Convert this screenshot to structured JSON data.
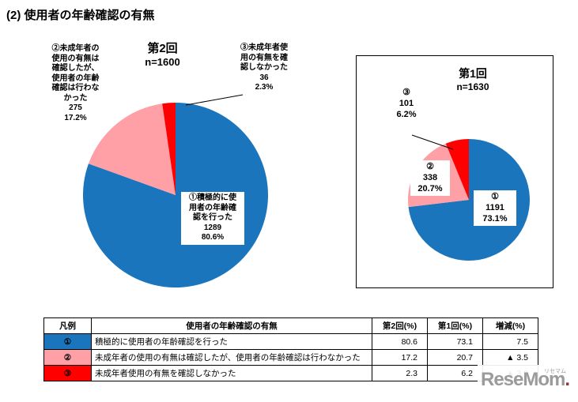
{
  "page_title": "(2) 使用者の年齢確認の有無",
  "colors": {
    "blue": "#1b75bc",
    "pink": "#ff9fa6",
    "red": "#fe0000"
  },
  "chart_data": [
    {
      "type": "pie",
      "round": "第2回",
      "n_label": "n=1600",
      "categories": [
        "①積極的に使用者の年齢確認を行った",
        "②未成年者の使用の有無は確認したが、使用者の年齢確認は行わなかった",
        "③未成年者使用の有無を確認しなかった"
      ],
      "values": [
        1289,
        275,
        36
      ],
      "percents": [
        80.6,
        17.2,
        2.3
      ],
      "slices": [
        {
          "name": "age-confirmed",
          "pct": 80.6,
          "color": "#1b75bc",
          "label": "①積極的に使\n用者の年齢確\n認を行った\n1289\n80.6%"
        },
        {
          "name": "minor-use-checked-only",
          "pct": 17.2,
          "color": "#ff9fa6",
          "label": "②未成年者の\n使用の有無は\n確認したが、\n使用者の年齢\n確認は行わな\nかった\n275\n17.2%"
        },
        {
          "name": "not-checked",
          "pct": 2.3,
          "color": "#fe0000",
          "label": "③未成年者使\n用の有無を確\n認しなかった\n36\n2.3%"
        }
      ]
    },
    {
      "type": "pie",
      "round": "第1回",
      "n_label": "n=1630",
      "categories": [
        "①",
        "②",
        "③"
      ],
      "values": [
        1191,
        338,
        101
      ],
      "percents": [
        73.1,
        20.7,
        6.2
      ],
      "slices": [
        {
          "name": "age-confirmed",
          "pct": 73.1,
          "color": "#1b75bc",
          "label": "①\n1191\n73.1%"
        },
        {
          "name": "minor-use-checked-only",
          "pct": 20.7,
          "color": "#ff9fa6",
          "label": "②\n338\n20.7%"
        },
        {
          "name": "not-checked",
          "pct": 6.2,
          "color": "#fe0000",
          "label": "③\n101\n6.2%"
        }
      ]
    }
  ],
  "table": {
    "headers": [
      "凡例",
      "使用者の年齢確認の有無",
      "第2回(%)",
      "第1回(%)",
      "増減(%)"
    ],
    "rows": [
      {
        "legend": "①",
        "color": "#1b75bc",
        "desc": "積極的に使用者の年齢確認を行った",
        "r2": "80.6",
        "r1": "73.1",
        "diff": "7.5"
      },
      {
        "legend": "②",
        "color": "#ff9fa6",
        "desc": "未成年者の使用の有無は確認したが、使用者の年齢確認は行わなかった",
        "r2": "17.2",
        "r1": "20.7",
        "diff": "▲ 3.5"
      },
      {
        "legend": "③",
        "color": "#fe0000",
        "desc": "未成年者使用の有無を確認しなかった",
        "r2": "2.3",
        "r1": "6.2",
        "diff": "▲ 3.9"
      }
    ]
  },
  "watermark": {
    "text": "ReseMom",
    "ruby": "リセマム",
    "dot": "."
  }
}
